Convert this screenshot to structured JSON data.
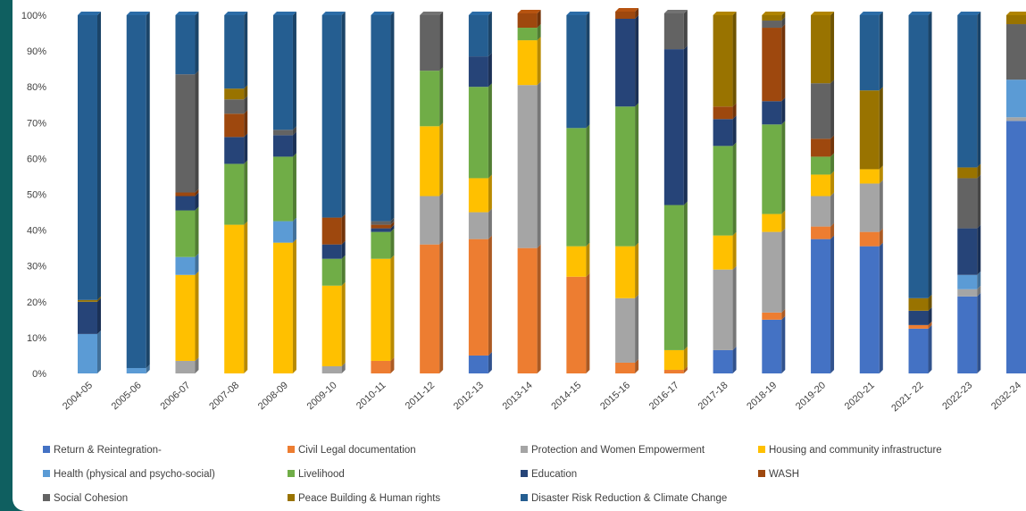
{
  "chart_data": {
    "type": "bar",
    "stacked": true,
    "percent": true,
    "categories": [
      "2004-05",
      "2005-06",
      "2006-07",
      "2007-08",
      "2008-09",
      "2009-10",
      "2010-11",
      "2011-12",
      "2012-13",
      "2013-14",
      "2014-15",
      "2015-16",
      "2016-17",
      "2017-18",
      "2018-19",
      "2019-20",
      "2020-21",
      "2021- 22",
      "2022-23",
      "2032-24"
    ],
    "ylim": [
      0,
      100
    ],
    "yticks": [
      0,
      10,
      20,
      30,
      40,
      50,
      60,
      70,
      80,
      90,
      100
    ],
    "ytick_suffix": "%",
    "grid": false,
    "legend_position": "bottom",
    "series": [
      {
        "name": "Return & Reintegration-",
        "color": "#4472C4",
        "values": [
          0,
          0,
          0,
          0,
          0,
          0,
          0,
          0,
          5,
          0,
          0,
          0,
          0,
          6.5,
          15,
          37.5,
          35.5,
          12.5,
          21.5,
          70.5
        ]
      },
      {
        "name": "Civil Legal documentation",
        "color": "#ED7D31",
        "values": [
          0,
          0,
          0,
          0,
          0,
          0,
          3.5,
          36,
          32.5,
          35,
          27,
          3,
          1,
          0,
          2,
          3.5,
          4,
          1,
          0,
          0
        ]
      },
      {
        "name": "Protection and Women Empowerment",
        "color": "#A5A5A5",
        "values": [
          0,
          0,
          3.5,
          0,
          0,
          2,
          0,
          13.5,
          7.5,
          45.5,
          0,
          18,
          0,
          22.5,
          22.5,
          8.5,
          13.5,
          0,
          2,
          1
        ]
      },
      {
        "name": "Housing and community infrastructure",
        "color": "#FFC000",
        "values": [
          0,
          0,
          24,
          41.5,
          36.5,
          22.5,
          28.5,
          19.5,
          9.5,
          12.5,
          8.5,
          14.5,
          5.5,
          9.5,
          5,
          6,
          4,
          0,
          0,
          0
        ]
      },
      {
        "name": "Health (physical and psycho-social)",
        "color": "#5B9BD5",
        "values": [
          11,
          1.5,
          5,
          0,
          6,
          0,
          0,
          0,
          0,
          0,
          0,
          0,
          0,
          0,
          0,
          0,
          0,
          0,
          4,
          10.5
        ]
      },
      {
        "name": "Livelihood",
        "color": "#70AD47",
        "values": [
          0,
          0,
          13,
          17,
          18,
          7.5,
          7.5,
          15.5,
          25.5,
          3.5,
          33,
          39,
          40.5,
          25,
          25,
          5,
          0,
          0,
          0,
          0
        ]
      },
      {
        "name": "Education",
        "color": "#264478",
        "values": [
          9,
          0,
          4,
          7.5,
          6,
          4,
          1,
          0,
          8.5,
          0,
          0,
          24.5,
          43.5,
          7.5,
          6.5,
          0,
          0,
          4,
          13,
          0
        ]
      },
      {
        "name": "WASH",
        "color": "#9E480E",
        "values": [
          0,
          0,
          1,
          6.5,
          0,
          7.5,
          1,
          0,
          0,
          4,
          0,
          2,
          0,
          3.5,
          20.5,
          5,
          0,
          0,
          0,
          0
        ]
      },
      {
        "name": "Social Cohesion",
        "color": "#636363",
        "values": [
          0,
          0,
          33,
          4,
          1.5,
          0,
          1,
          15.5,
          0,
          0,
          0,
          0,
          10,
          0,
          2,
          15.5,
          0,
          0,
          14,
          15.5
        ]
      },
      {
        "name": "Peace Building & Human rights",
        "color": "#997300",
        "values": [
          0.5,
          0,
          0,
          3,
          0,
          0,
          0,
          0,
          0,
          0,
          0,
          0,
          0,
          25.5,
          1.5,
          19,
          22,
          3.5,
          3,
          2.5
        ]
      },
      {
        "name": "Disaster Risk Reduction & Climate Change",
        "color": "#255E91",
        "values": [
          79.5,
          98.5,
          16.5,
          20.5,
          32,
          56.5,
          57.5,
          0,
          11.5,
          0,
          31.5,
          0,
          0,
          0,
          0,
          0,
          21,
          79,
          42.5,
          0
        ]
      }
    ]
  }
}
